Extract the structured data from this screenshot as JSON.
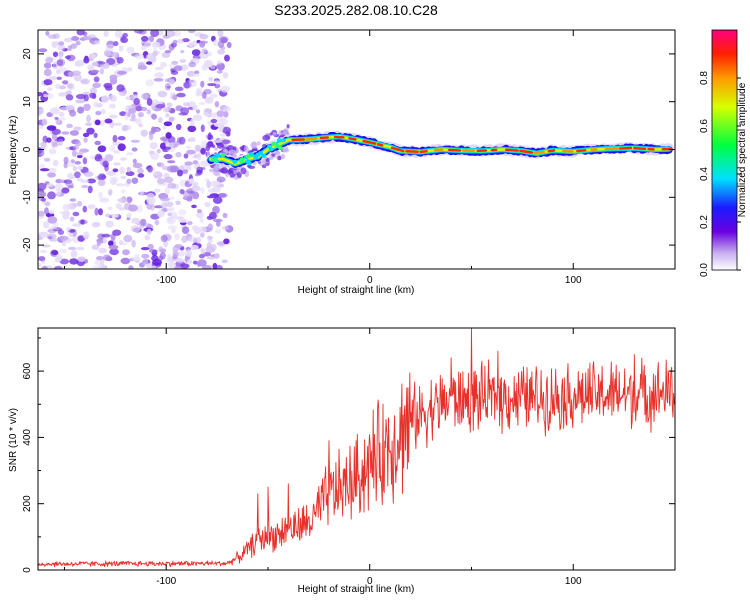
{
  "title": "S233.2025.282.08.10.C28",
  "chart_data": [
    {
      "type": "heatmap",
      "name": "spectrogram",
      "xlabel": "Height of straight line (km)",
      "ylabel": "Frequency (Hz)",
      "xlim": [
        -163,
        150
      ],
      "ylim": [
        -25,
        25
      ],
      "xticks": [
        -100,
        0,
        100
      ],
      "yticks": [
        -20,
        -10,
        0,
        10,
        20
      ],
      "xtick_labels": [
        "-100",
        "0",
        "100"
      ],
      "ytick_labels": [
        "-20",
        "-10",
        "0",
        "10",
        "20"
      ],
      "noise_region_x": [
        -163,
        -73
      ],
      "transition_region_x": [
        -80,
        -40
      ],
      "ridge": [
        {
          "x": -78,
          "f": -2
        },
        {
          "x": -72,
          "f": -2
        },
        {
          "x": -66,
          "f": -3
        },
        {
          "x": -60,
          "f": -2
        },
        {
          "x": -55,
          "f": -1.5
        },
        {
          "x": -50,
          "f": 0
        },
        {
          "x": -45,
          "f": 1
        },
        {
          "x": -40,
          "f": 2
        },
        {
          "x": -35,
          "f": 2
        },
        {
          "x": -28,
          "f": 2.2
        },
        {
          "x": -22,
          "f": 2.5
        },
        {
          "x": -15,
          "f": 2.7
        },
        {
          "x": -8,
          "f": 2.2
        },
        {
          "x": 0,
          "f": 1.5
        },
        {
          "x": 5,
          "f": 1
        },
        {
          "x": 10,
          "f": 0.5
        },
        {
          "x": 15,
          "f": -0.3
        },
        {
          "x": 25,
          "f": -0.5
        },
        {
          "x": 35,
          "f": 0
        },
        {
          "x": 45,
          "f": -0.2
        },
        {
          "x": 55,
          "f": -0.3
        },
        {
          "x": 65,
          "f": 0
        },
        {
          "x": 75,
          "f": -0.3
        },
        {
          "x": 82,
          "f": -0.8
        },
        {
          "x": 90,
          "f": -0.2
        },
        {
          "x": 100,
          "f": -0.4
        },
        {
          "x": 110,
          "f": 0
        },
        {
          "x": 120,
          "f": 0.2
        },
        {
          "x": 130,
          "f": 0.3
        },
        {
          "x": 140,
          "f": 0
        },
        {
          "x": 147,
          "f": 0.1
        }
      ]
    },
    {
      "type": "colorbar",
      "name": "amplitude-colorbar",
      "label": "Normalized spectral amplitude",
      "range": [
        0,
        1
      ],
      "ticks": [
        0,
        0.2,
        0.4,
        0.6,
        0.8
      ],
      "tick_labels": [
        "0.0",
        "0.2",
        "0.4",
        "0.6",
        "0.8"
      ]
    },
    {
      "type": "line",
      "name": "snr",
      "xlabel": "Height of straight line (km)",
      "ylabel": "SNR (10 * v/v)",
      "xlim": [
        -163,
        150
      ],
      "ylim": [
        0,
        730
      ],
      "xticks": [
        -100,
        0,
        100
      ],
      "yticks": [
        0,
        200,
        400,
        600
      ],
      "xtick_labels": [
        "-100",
        "0",
        "100"
      ],
      "ytick_labels": [
        "0",
        "200",
        "400",
        "600"
      ],
      "color": "#e8302a",
      "trend": [
        {
          "x": -163,
          "y": 18
        },
        {
          "x": -70,
          "y": 20
        },
        {
          "x": -64,
          "y": 40
        },
        {
          "x": -55,
          "y": 90
        },
        {
          "x": -45,
          "y": 110
        },
        {
          "x": -35,
          "y": 130
        },
        {
          "x": -28,
          "y": 150
        },
        {
          "x": -20,
          "y": 230
        },
        {
          "x": -10,
          "y": 260
        },
        {
          "x": 0,
          "y": 320
        },
        {
          "x": 10,
          "y": 380
        },
        {
          "x": 20,
          "y": 450
        },
        {
          "x": 30,
          "y": 490
        },
        {
          "x": 40,
          "y": 510
        },
        {
          "x": 60,
          "y": 520
        },
        {
          "x": 80,
          "y": 520
        },
        {
          "x": 100,
          "y": 525
        },
        {
          "x": 120,
          "y": 530
        },
        {
          "x": 150,
          "y": 535
        }
      ],
      "peaks": [
        {
          "x": -55,
          "y": 230
        },
        {
          "x": -50,
          "y": 250
        },
        {
          "x": -40,
          "y": 260
        },
        {
          "x": -20,
          "y": 390
        },
        {
          "x": 17,
          "y": 480
        },
        {
          "x": 40,
          "y": 640
        },
        {
          "x": 50,
          "y": 730
        },
        {
          "x": 63,
          "y": 660
        },
        {
          "x": 130,
          "y": 650
        },
        {
          "x": 148,
          "y": 600
        }
      ]
    }
  ]
}
